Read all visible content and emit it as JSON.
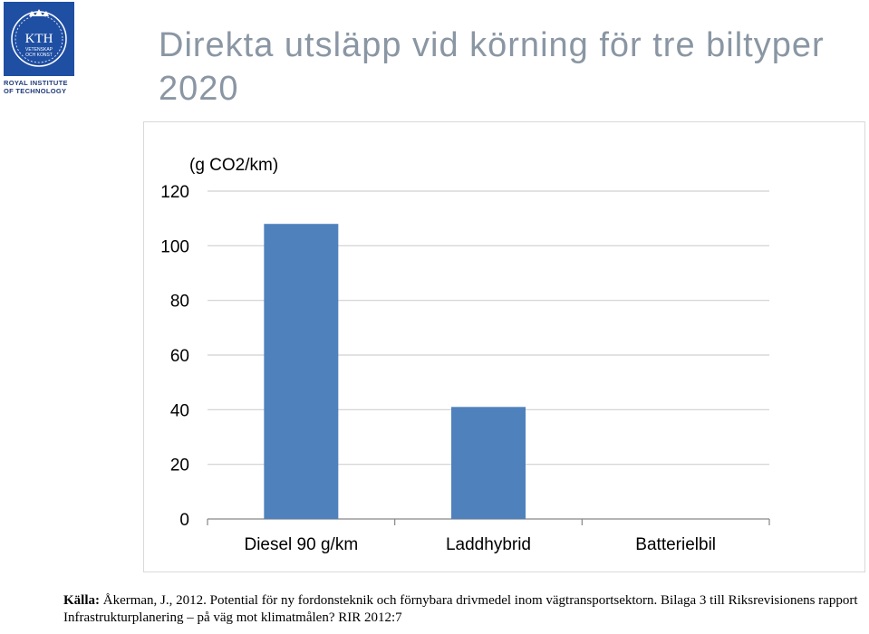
{
  "logo": {
    "caption_line1": "ROYAL INSTITUTE",
    "caption_line2": "OF TECHNOLOGY",
    "seal_text_main": "KTH",
    "seal_text_sub1": "VETENSKAP",
    "seal_text_sub2": "OCH KONST",
    "color": "#1f4fa3"
  },
  "slide": {
    "title": "Direkta utsläpp vid körning för tre biltyper 2020"
  },
  "chart_data": {
    "type": "bar",
    "title": "",
    "unit_label": "(g CO2/km)",
    "categories": [
      "Diesel 90 g/km",
      "Laddhybrid",
      "Batterielbil"
    ],
    "values": [
      108,
      41,
      0
    ],
    "ylim": [
      0,
      120
    ],
    "yticks": [
      0,
      20,
      40,
      60,
      80,
      100,
      120
    ],
    "grid": true,
    "legend": "none",
    "bar_color": "#4f81bd"
  },
  "source": {
    "label": "Källa:",
    "text": "Åkerman, J., 2012. Potential för ny fordonsteknik och förnybara drivmedel inom vägtransportsektorn. Bilaga 3 till Riksrevisionens rapport Infrastrukturplanering – på väg mot klimatmålen? RIR 2012:7"
  }
}
